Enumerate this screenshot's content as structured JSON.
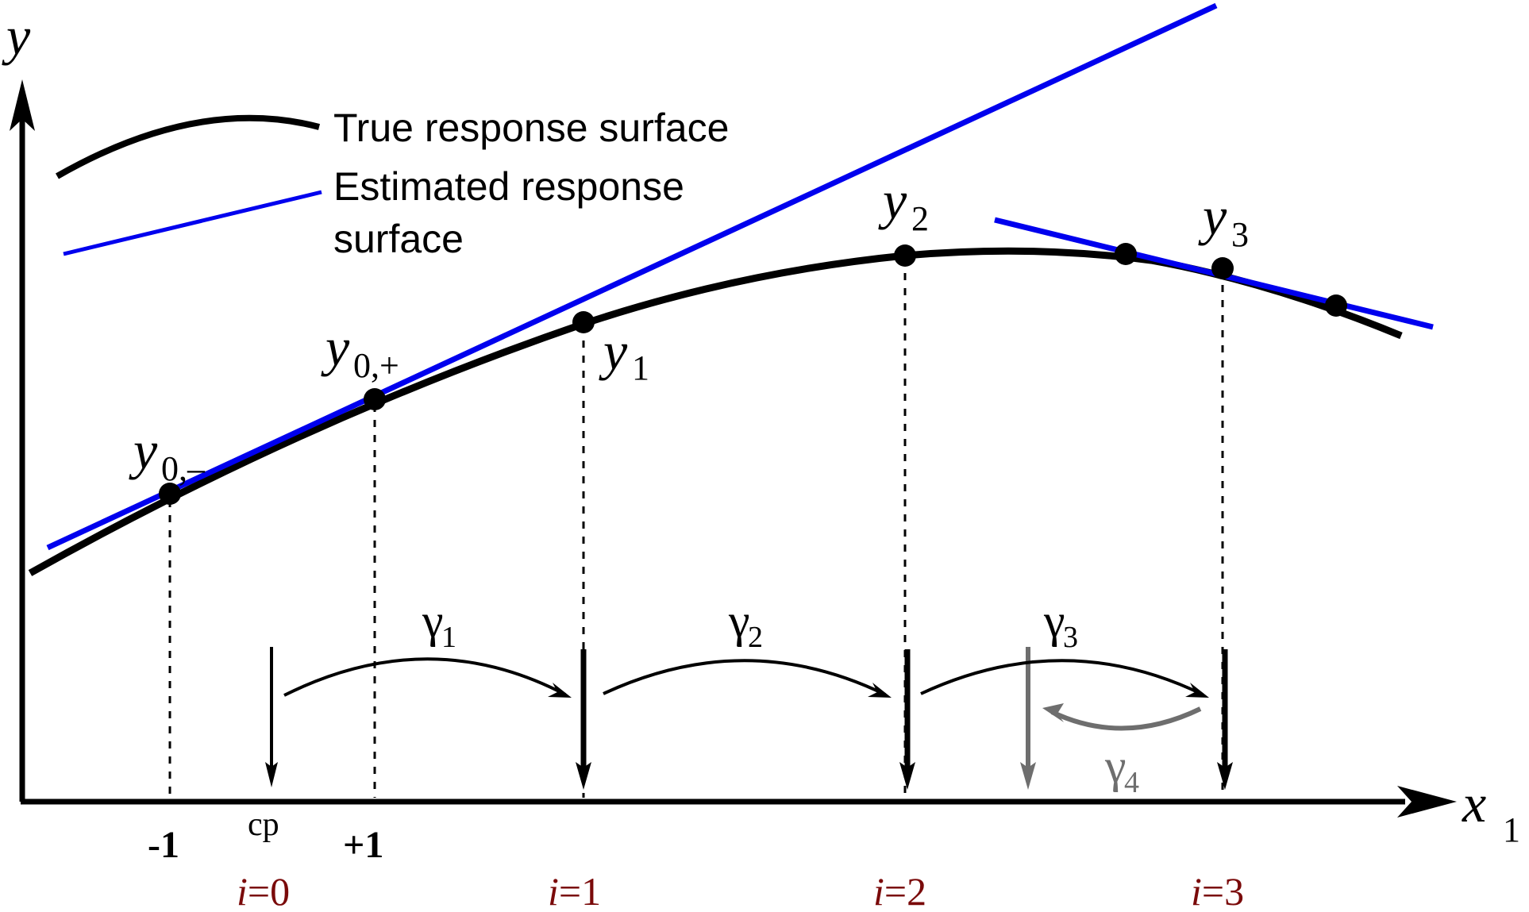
{
  "axes": {
    "y_label": "y",
    "x_label": "x",
    "x_label_sub": "1"
  },
  "legend": {
    "true_label": "True response surface",
    "estimated_label_line1": "Estimated response",
    "estimated_label_line2": "surface"
  },
  "points": {
    "y0_minus": {
      "base": "y",
      "sub": "0,–"
    },
    "y0_plus": {
      "base": "y",
      "sub": "0,+"
    },
    "y1": {
      "base": "y",
      "sub": "1"
    },
    "y2": {
      "base": "y",
      "sub": "2"
    },
    "y3": {
      "base": "y",
      "sub": "3"
    }
  },
  "steps": {
    "g1": {
      "base": "γ",
      "sub": "1"
    },
    "g2": {
      "base": "γ",
      "sub": "2"
    },
    "g3": {
      "base": "γ",
      "sub": "3"
    },
    "g4": {
      "base": "γ",
      "sub": "4"
    }
  },
  "ticks": {
    "minus_one": "-1",
    "cp": "cp",
    "plus_one": "+1"
  },
  "iterations": {
    "i0": {
      "var": "i",
      "rest": "=0"
    },
    "i1": {
      "var": "i",
      "rest": "=1"
    },
    "i2": {
      "var": "i",
      "rest": "=2"
    },
    "i3": {
      "var": "i",
      "rest": "=3"
    }
  },
  "colors": {
    "true_surface": "#000000",
    "estimated_surface": "#0000ee",
    "iteration_label": "#7a0a0a",
    "gamma4": "#6e6e6e"
  }
}
